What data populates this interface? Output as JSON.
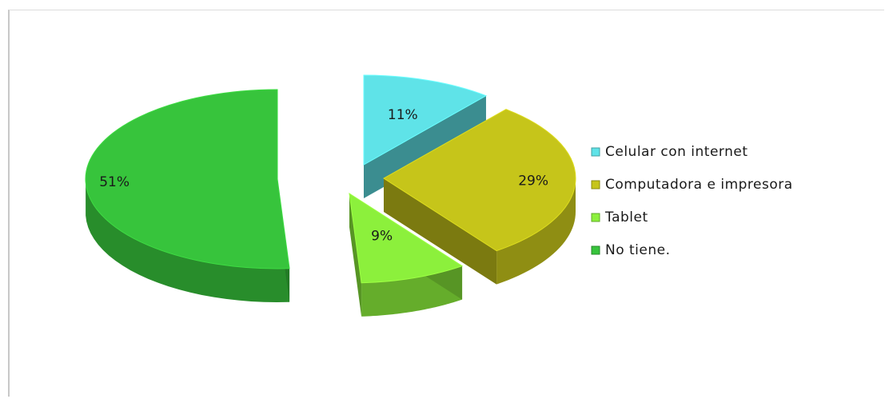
{
  "chart_data": {
    "type": "pie",
    "style": "3d-exploded",
    "categories": [
      "Celular con internet",
      "Computadora e impresora",
      "Tablet",
      "No tiene."
    ],
    "values": [
      11,
      29,
      9,
      51
    ],
    "labels": [
      "11%",
      "29%",
      "9%",
      "51%"
    ],
    "colors": [
      "#5fe3e8",
      "#c6c51a",
      "#8cf03c",
      "#37c43c"
    ],
    "legend_position": "right"
  }
}
